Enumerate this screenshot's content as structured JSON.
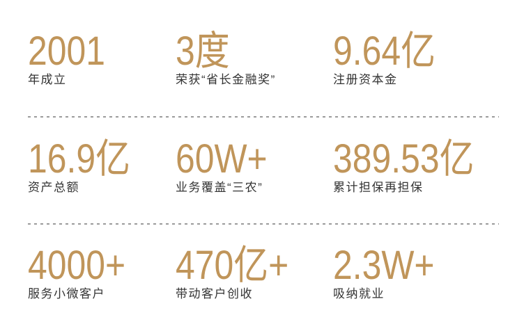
{
  "panel_title": "company-statistics",
  "colors": {
    "accent": "#C0955A",
    "label": "#333333",
    "divider": "#9B9B9B",
    "bg": "#FFFFFF"
  },
  "stats": [
    {
      "value": "2001",
      "label": "年成立"
    },
    {
      "value": "3度",
      "label": "荣获“省长金融奖”"
    },
    {
      "value": "9.64亿",
      "label": "注册资本金"
    },
    {
      "value": "16.9亿",
      "label": "资产总额"
    },
    {
      "value": "60W+",
      "label": "业务覆盖“三农”"
    },
    {
      "value": "389.53亿",
      "label": "累计担保再担保"
    },
    {
      "value": "4000+",
      "label": "服务小微客户"
    },
    {
      "value": "470亿+",
      "label": "带动客户创收"
    },
    {
      "value": "2.3W+",
      "label": "吸纳就业"
    }
  ]
}
